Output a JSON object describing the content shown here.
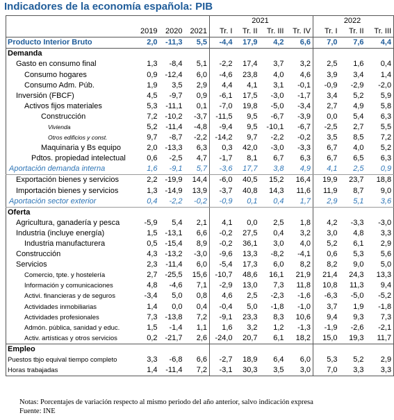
{
  "title": "Indicadores de la economía española: PIB",
  "columns": {
    "groups": [
      "2021",
      "2022"
    ],
    "periods": [
      "2019",
      "2020",
      "2021",
      "Tr. I",
      "Tr. II",
      "Tr. III",
      "Tr. IV",
      "Tr. I",
      "Tr. II",
      "Tr. III"
    ]
  },
  "rows": [
    {
      "label": "Producto Interior Bruto",
      "values": [
        "2,0",
        "-11,3",
        "5,5",
        "-4,4",
        "17,9",
        "4,2",
        "6,6",
        "7,0",
        "7,6",
        "4,4"
      ]
    },
    {
      "label": "Demanda"
    },
    {
      "label": "Gasto en consumo final",
      "values": [
        "1,3",
        "-8,4",
        "5,1",
        "-2,2",
        "17,4",
        "3,7",
        "3,2",
        "2,5",
        "1,6",
        "0,4"
      ]
    },
    {
      "label": "Consumo hogares",
      "values": [
        "0,9",
        "-12,4",
        "6,0",
        "-4,6",
        "23,8",
        "4,0",
        "4,6",
        "3,9",
        "3,4",
        "1,4"
      ]
    },
    {
      "label": "Consumo Adm. Púb.",
      "values": [
        "1,9",
        "3,5",
        "2,9",
        "4,4",
        "4,1",
        "3,1",
        "-0,1",
        "-0,9",
        "-2,9",
        "-2,0"
      ]
    },
    {
      "label": "Inversión (FBCF)",
      "values": [
        "4,5",
        "-9,7",
        "0,9",
        "-6,1",
        "17,5",
        "-3,0",
        "-1,7",
        "3,4",
        "5,2",
        "5,9"
      ]
    },
    {
      "label": "Activos fijos materiales",
      "values": [
        "5,3",
        "-11,1",
        "0,1",
        "-7,0",
        "19,8",
        "-5,0",
        "-3,4",
        "2,7",
        "4,9",
        "5,8"
      ]
    },
    {
      "label": "Construcción",
      "values": [
        "7,2",
        "-10,2",
        "-3,7",
        "-11,5",
        "9,5",
        "-6,7",
        "-3,9",
        "0,0",
        "5,4",
        "6,3"
      ]
    },
    {
      "label": "Vivienda",
      "values": [
        "5,2",
        "-11,4",
        "-4,8",
        "-9,4",
        "9,5",
        "-10,1",
        "-6,7",
        "-2,5",
        "2,7",
        "5,5"
      ]
    },
    {
      "label": "Otros edificios y const.",
      "values": [
        "9,7",
        "-8,7",
        "-2,2",
        "-14,2",
        "9,7",
        "-2,2",
        "-0,2",
        "3,5",
        "8,5",
        "7,2"
      ]
    },
    {
      "label": "Maquinaria y Bs equipo",
      "values": [
        "2,0",
        "-13,3",
        "6,3",
        "0,3",
        "42,0",
        "-3,0",
        "-3,3",
        "6,7",
        "4,0",
        "5,2"
      ]
    },
    {
      "label": "Pdtos. propiedad intelectual",
      "values": [
        "0,6",
        "-2,5",
        "4,7",
        "-1,7",
        "8,1",
        "6,7",
        "6,3",
        "6,7",
        "6,5",
        "6,3"
      ]
    },
    {
      "label": "Aportación demanda interna",
      "values": [
        "1,6",
        "-9,1",
        "5,7",
        "-3,6",
        "17,7",
        "3,8",
        "4,9",
        "4,1",
        "2,5",
        "0,9"
      ]
    },
    {
      "label": "Exportación bienes y servicios",
      "values": [
        "2,2",
        "-19,9",
        "14,4",
        "-6,0",
        "40,5",
        "15,2",
        "16,4",
        "19,9",
        "23,7",
        "18,8"
      ]
    },
    {
      "label": "Importación bienes y servicios",
      "values": [
        "1,3",
        "-14,9",
        "13,9",
        "-3,7",
        "40,8",
        "14,3",
        "11,6",
        "11,9",
        "8,7",
        "9,0"
      ]
    },
    {
      "label": "Aportación sector exterior",
      "values": [
        "0,4",
        "-2,2",
        "-0,2",
        "-0,9",
        "0,1",
        "0,4",
        "1,7",
        "2,9",
        "5,1",
        "3,6"
      ]
    },
    {
      "label": "Oferta"
    },
    {
      "label": "Agricultura, ganadería y pesca",
      "values": [
        "-5,9",
        "5,4",
        "2,1",
        "4,1",
        "0,0",
        "2,5",
        "1,8",
        "4,2",
        "-3,3",
        "-3,0"
      ]
    },
    {
      "label": "Industria (incluye energía)",
      "values": [
        "1,5",
        "-13,1",
        "6,6",
        "-0,2",
        "27,5",
        "0,4",
        "3,2",
        "3,0",
        "4,8",
        "3,3"
      ]
    },
    {
      "label": "Industria manufacturera",
      "values": [
        "0,5",
        "-15,4",
        "8,9",
        "-0,2",
        "36,1",
        "3,0",
        "4,0",
        "5,2",
        "6,1",
        "2,9"
      ]
    },
    {
      "label": "Construcción",
      "values": [
        "4,3",
        "-13,2",
        "-3,0",
        "-9,6",
        "13,3",
        "-8,2",
        "-4,1",
        "0,6",
        "5,3",
        "5,6"
      ]
    },
    {
      "label": "Servicios",
      "values": [
        "2,3",
        "-11,4",
        "6,0",
        "-5,4",
        "17,3",
        "6,0",
        "8,2",
        "8,2",
        "9,0",
        "5,0"
      ]
    },
    {
      "label": "Comercio, tpte. y hostelería",
      "values": [
        "2,7",
        "-25,5",
        "15,6",
        "-10,7",
        "48,6",
        "16,1",
        "21,9",
        "21,4",
        "24,3",
        "13,3"
      ]
    },
    {
      "label": "Información y comunicaciones",
      "values": [
        "4,8",
        "-4,6",
        "7,1",
        "-2,9",
        "13,0",
        "7,3",
        "11,8",
        "10,8",
        "11,3",
        "9,4"
      ]
    },
    {
      "label": "Activi. financieras y de seguros",
      "values": [
        "-3,4",
        "5,0",
        "0,8",
        "4,6",
        "2,5",
        "-2,3",
        "-1,6",
        "-6,3",
        "-5,0",
        "-5,2"
      ]
    },
    {
      "label": "Actividades inmobiliarias",
      "values": [
        "1,4",
        "0,0",
        "0,4",
        "-0,4",
        "5,0",
        "-1,8",
        "-1,0",
        "3,7",
        "1,9",
        "-1,8"
      ]
    },
    {
      "label": "Actividades profesionales",
      "values": [
        "7,3",
        "-13,8",
        "7,2",
        "-9,1",
        "23,3",
        "8,3",
        "10,6",
        "9,4",
        "9,3",
        "7,3"
      ]
    },
    {
      "label": "Admón. pública, sanidad y educ.",
      "values": [
        "1,5",
        "-1,4",
        "1,1",
        "1,6",
        "3,2",
        "1,2",
        "-1,3",
        "-1,9",
        "-2,6",
        "-2,1"
      ]
    },
    {
      "label": "Activ. artísticas y otros servicios",
      "values": [
        "0,2",
        "-21,7",
        "2,6",
        "-24,0",
        "20,7",
        "6,1",
        "18,2",
        "15,0",
        "19,3",
        "11,7"
      ]
    },
    {
      "label": "Empleo"
    },
    {
      "label": "Puestos tbjo equival tiempo completo",
      "values": [
        "3,3",
        "-6,8",
        "6,6",
        "-2,7",
        "18,9",
        "6,4",
        "6,0",
        "5,3",
        "5,2",
        "2,9"
      ]
    },
    {
      "label": "Horas trabajadas",
      "values": [
        "1,4",
        "-11,4",
        "7,2",
        "-3,1",
        "30,3",
        "3,5",
        "3,0",
        "7,0",
        "3,3",
        "3,3"
      ]
    }
  ],
  "notes": [
    "Notas: Porcentajes de variación respecto al mismo periodo del año anterior, salvo indicación expresa",
    "Fuente: INE"
  ]
}
